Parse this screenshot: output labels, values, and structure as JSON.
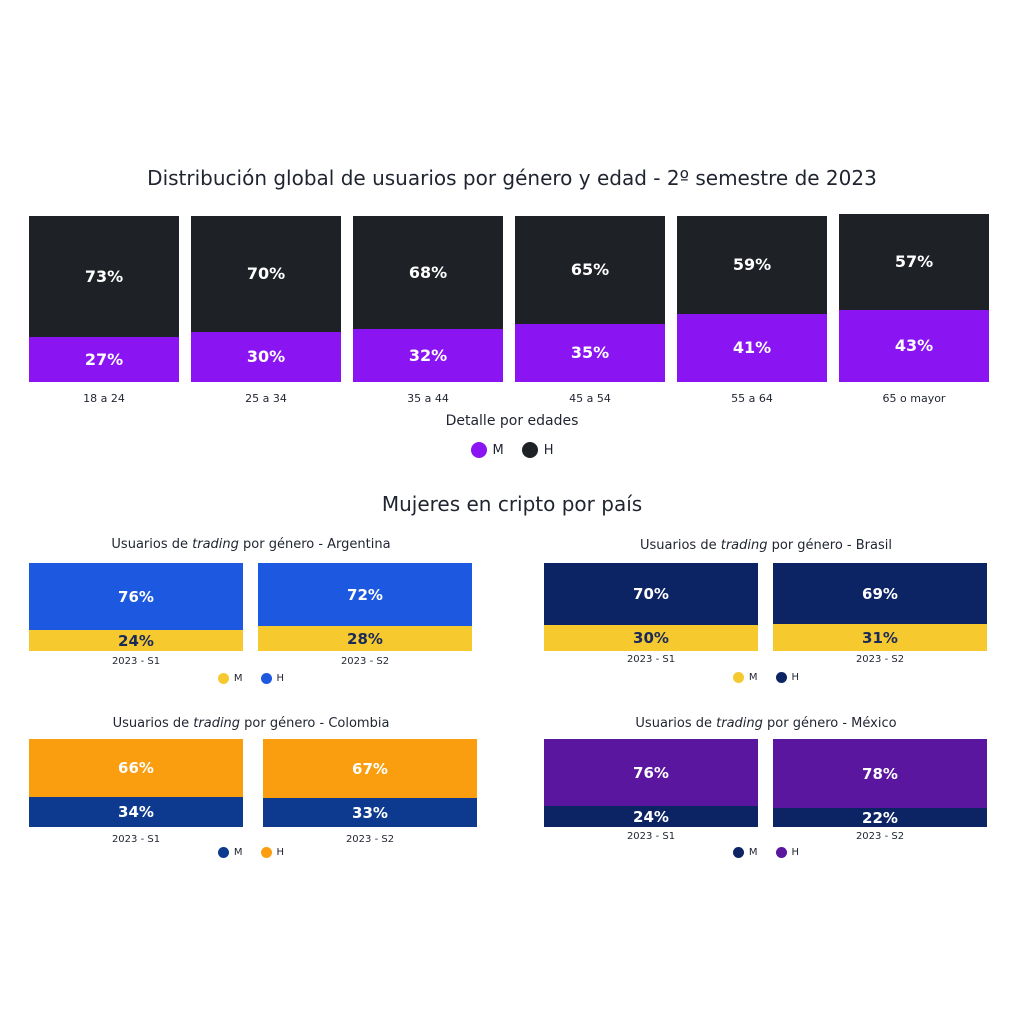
{
  "main": {
    "title": "Distribución global de usuarios por género y edad - 2º semestre de 2023",
    "xlabel": "Detalle por edades",
    "legend": [
      {
        "label": "M",
        "color": "#8a14f2"
      },
      {
        "label": "H",
        "color": "#1e2126"
      }
    ]
  },
  "section_title": "Mujeres en cripto por país",
  "chart_data": [
    {
      "type": "bar",
      "stacked": true,
      "normalized": true,
      "title": "Distribución global de usuarios por género y edad - 2º semestre de 2023",
      "xlabel": "Detalle por edades",
      "ylabel": "",
      "categories": [
        "18 a 24",
        "25 a 34",
        "35 a 44",
        "45 a 54",
        "55 a 64",
        "65 o mayor"
      ],
      "series": [
        {
          "name": "M",
          "color": "#8a14f2",
          "values": [
            27,
            30,
            32,
            35,
            41,
            43
          ],
          "labels": [
            "27%",
            "30%",
            "32%",
            "35%",
            "41%",
            "43%"
          ],
          "label_color": "#ffffff"
        },
        {
          "name": "H",
          "color": "#1e2126",
          "values": [
            73,
            70,
            68,
            65,
            59,
            57
          ],
          "labels": [
            "73%",
            "70%",
            "68%",
            "65%",
            "59%",
            "57%"
          ],
          "label_color": "#ffffff"
        }
      ],
      "ylim": [
        0,
        100
      ],
      "legend_position": "bottom-center",
      "grid": false
    },
    {
      "type": "bar",
      "stacked": true,
      "normalized": true,
      "title_prefix": "Usuarios de ",
      "title_italic": "trading",
      "title_suffix": " por género - Argentina",
      "categories": [
        "2023 - S1",
        "2023 - S2"
      ],
      "series": [
        {
          "name": "M",
          "color": "#f6c92e",
          "values": [
            24,
            28
          ],
          "labels": [
            "24%",
            "28%"
          ],
          "label_color": "#1a2a5a"
        },
        {
          "name": "H",
          "color": "#1d58e0",
          "values": [
            76,
            72
          ],
          "labels": [
            "76%",
            "72%"
          ],
          "label_color": "#ffffff"
        }
      ],
      "ylim": [
        0,
        100
      ],
      "legend_position": "bottom-center",
      "grid": false
    },
    {
      "type": "bar",
      "stacked": true,
      "normalized": true,
      "title_prefix": "Usuarios de ",
      "title_italic": "trading",
      "title_suffix": " por género - Brasil",
      "categories": [
        "2023 - S1",
        "2023 - S2"
      ],
      "series": [
        {
          "name": "M",
          "color": "#f6c92e",
          "values": [
            30,
            31
          ],
          "labels": [
            "30%",
            "31%"
          ],
          "label_color": "#1a2a5a"
        },
        {
          "name": "H",
          "color": "#0d2464",
          "values": [
            70,
            69
          ],
          "labels": [
            "70%",
            "69%"
          ],
          "label_color": "#ffffff"
        }
      ],
      "ylim": [
        0,
        100
      ],
      "legend_position": "bottom-center",
      "grid": false
    },
    {
      "type": "bar",
      "stacked": true,
      "normalized": true,
      "title_prefix": "Usuarios de ",
      "title_italic": "trading",
      "title_suffix": " por género - Colombia",
      "categories": [
        "2023 - S1",
        "2023 - S2"
      ],
      "series": [
        {
          "name": "M",
          "color": "#0d3a8f",
          "values": [
            34,
            33
          ],
          "labels": [
            "34%",
            "33%"
          ],
          "label_color": "#ffffff"
        },
        {
          "name": "H",
          "color": "#fa9d0e",
          "values": [
            66,
            67
          ],
          "labels": [
            "66%",
            "67%"
          ],
          "label_color": "#ffffff"
        }
      ],
      "ylim": [
        0,
        100
      ],
      "legend_position": "bottom-center",
      "grid": false
    },
    {
      "type": "bar",
      "stacked": true,
      "normalized": true,
      "title_prefix": "Usuarios de ",
      "title_italic": "trading",
      "title_suffix": " por género - México",
      "categories": [
        "2023 - S1",
        "2023 - S2"
      ],
      "series": [
        {
          "name": "M",
          "color": "#0d2464",
          "values": [
            24,
            22
          ],
          "labels": [
            "24%",
            "22%"
          ],
          "label_color": "#ffffff"
        },
        {
          "name": "H",
          "color": "#5a169e",
          "values": [
            76,
            78
          ],
          "labels": [
            "76%",
            "78%"
          ],
          "label_color": "#ffffff"
        }
      ],
      "ylim": [
        0,
        100
      ],
      "legend_position": "bottom-center",
      "grid": false
    }
  ]
}
